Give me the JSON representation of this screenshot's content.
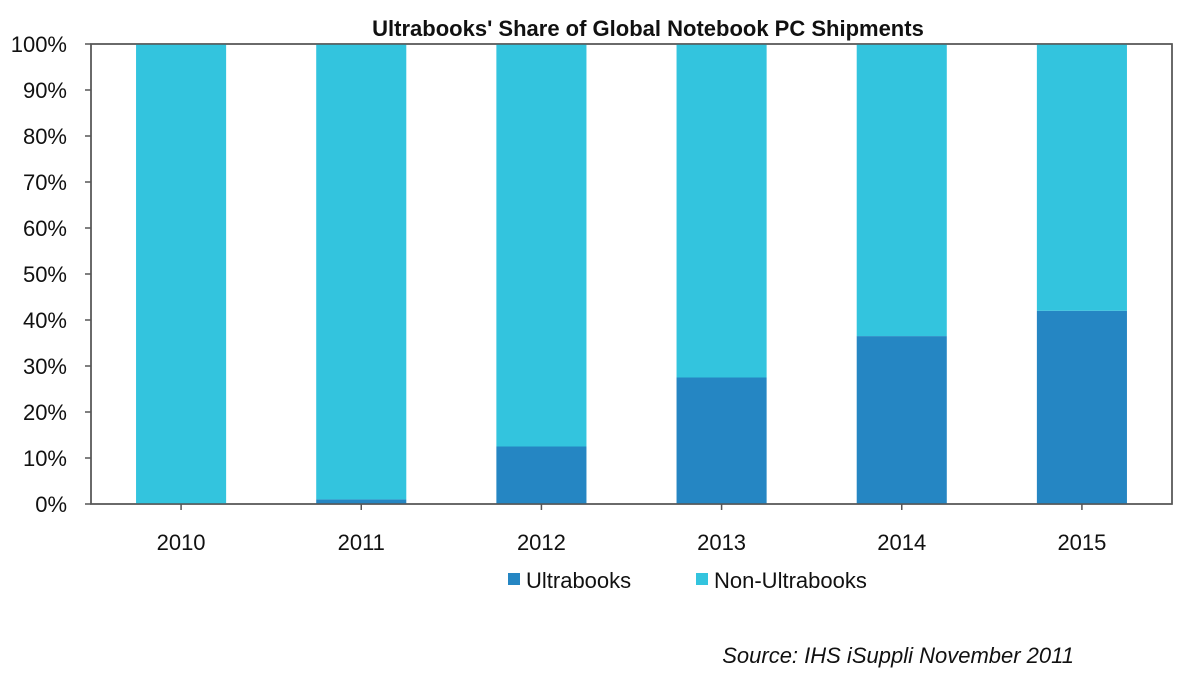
{
  "chart_data": {
    "type": "bar",
    "stacked": true,
    "title": "Ultrabooks' Share of Global Notebook PC Shipments",
    "xlabel": "",
    "ylabel": "",
    "categories": [
      "2010",
      "2011",
      "2012",
      "2013",
      "2014",
      "2015"
    ],
    "series": [
      {
        "name": "Ultrabooks",
        "color": "#2586c3",
        "values": [
          0,
          1,
          12.5,
          27.5,
          36.5,
          42
        ]
      },
      {
        "name": "Non-Ultrabooks",
        "color": "#33c4de",
        "values": [
          100,
          99,
          87.5,
          72.5,
          63.5,
          58
        ]
      }
    ],
    "ylim": [
      0,
      100
    ],
    "yticks": [
      "0%",
      "10%",
      "20%",
      "30%",
      "40%",
      "50%",
      "60%",
      "70%",
      "80%",
      "90%",
      "100%"
    ],
    "grid": false,
    "legend_position": "bottom",
    "source": "Source: IHS iSuppli November 2011"
  }
}
